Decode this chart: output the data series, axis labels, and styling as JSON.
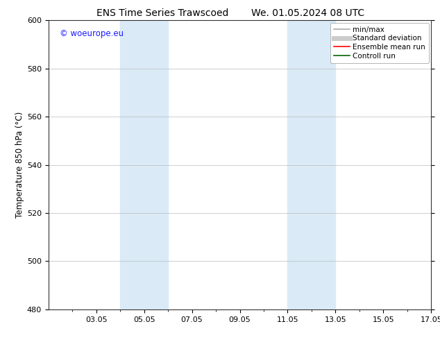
{
  "title_left": "ENS Time Series Trawscoed",
  "title_right": "We. 01.05.2024 08 UTC",
  "ylabel": "Temperature 850 hPa (°C)",
  "ylim": [
    480,
    600
  ],
  "yticks": [
    480,
    500,
    520,
    540,
    560,
    580,
    600
  ],
  "xlim": [
    1,
    17
  ],
  "xtick_positions": [
    3,
    5,
    7,
    9,
    11,
    13,
    15,
    17
  ],
  "xtick_labels": [
    "03.05",
    "05.05",
    "07.05",
    "09.05",
    "11.05",
    "13.05",
    "15.05",
    "17.05"
  ],
  "shaded_bands": [
    {
      "x_start": 4,
      "x_end": 6
    },
    {
      "x_start": 11,
      "x_end": 13
    }
  ],
  "shaded_color": "#daeaf7",
  "watermark_text": "© woeurope.eu",
  "watermark_color": "#1a1aff",
  "legend_entries": [
    {
      "label": "min/max",
      "color": "#aaaaaa",
      "linewidth": 1.2,
      "linestyle": "-"
    },
    {
      "label": "Standard deviation",
      "color": "#cccccc",
      "linewidth": 5,
      "linestyle": "-"
    },
    {
      "label": "Ensemble mean run",
      "color": "#ff0000",
      "linewidth": 1.2,
      "linestyle": "-"
    },
    {
      "label": "Controll run",
      "color": "#006600",
      "linewidth": 1.2,
      "linestyle": "-"
    }
  ],
  "background_color": "#ffffff",
  "grid_color": "#bbbbbb",
  "title_fontsize": 10,
  "ylabel_fontsize": 8.5,
  "tick_fontsize": 8,
  "watermark_fontsize": 8.5,
  "legend_fontsize": 7.5
}
